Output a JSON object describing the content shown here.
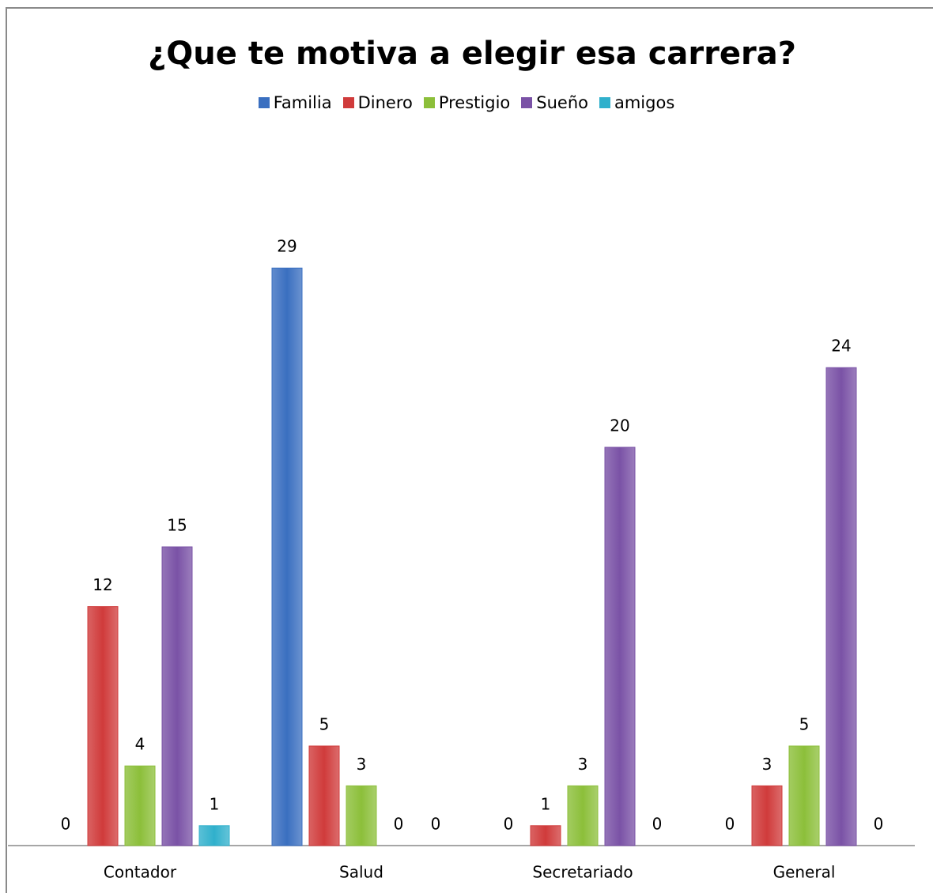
{
  "chart_data": {
    "type": "bar",
    "title": "¿Que te motiva a elegir esa carrera?",
    "categories": [
      "Contador",
      "Salud",
      "Secretariado",
      "General"
    ],
    "series": [
      {
        "name": "Familia",
        "color": "#3a6fc0",
        "values": [
          0,
          29,
          0,
          0
        ]
      },
      {
        "name": "Dinero",
        "color": "#d03b3b",
        "values": [
          12,
          5,
          1,
          3
        ]
      },
      {
        "name": "Prestigio",
        "color": "#8cbf3a",
        "values": [
          4,
          3,
          3,
          5
        ]
      },
      {
        "name": "Sueño",
        "color": "#7a52a6",
        "values": [
          15,
          0,
          20,
          24
        ]
      },
      {
        "name": "amigos",
        "color": "#30b0cc",
        "values": [
          1,
          0,
          0,
          0
        ]
      }
    ],
    "ylim": [
      0,
      35
    ],
    "legend": "top"
  }
}
